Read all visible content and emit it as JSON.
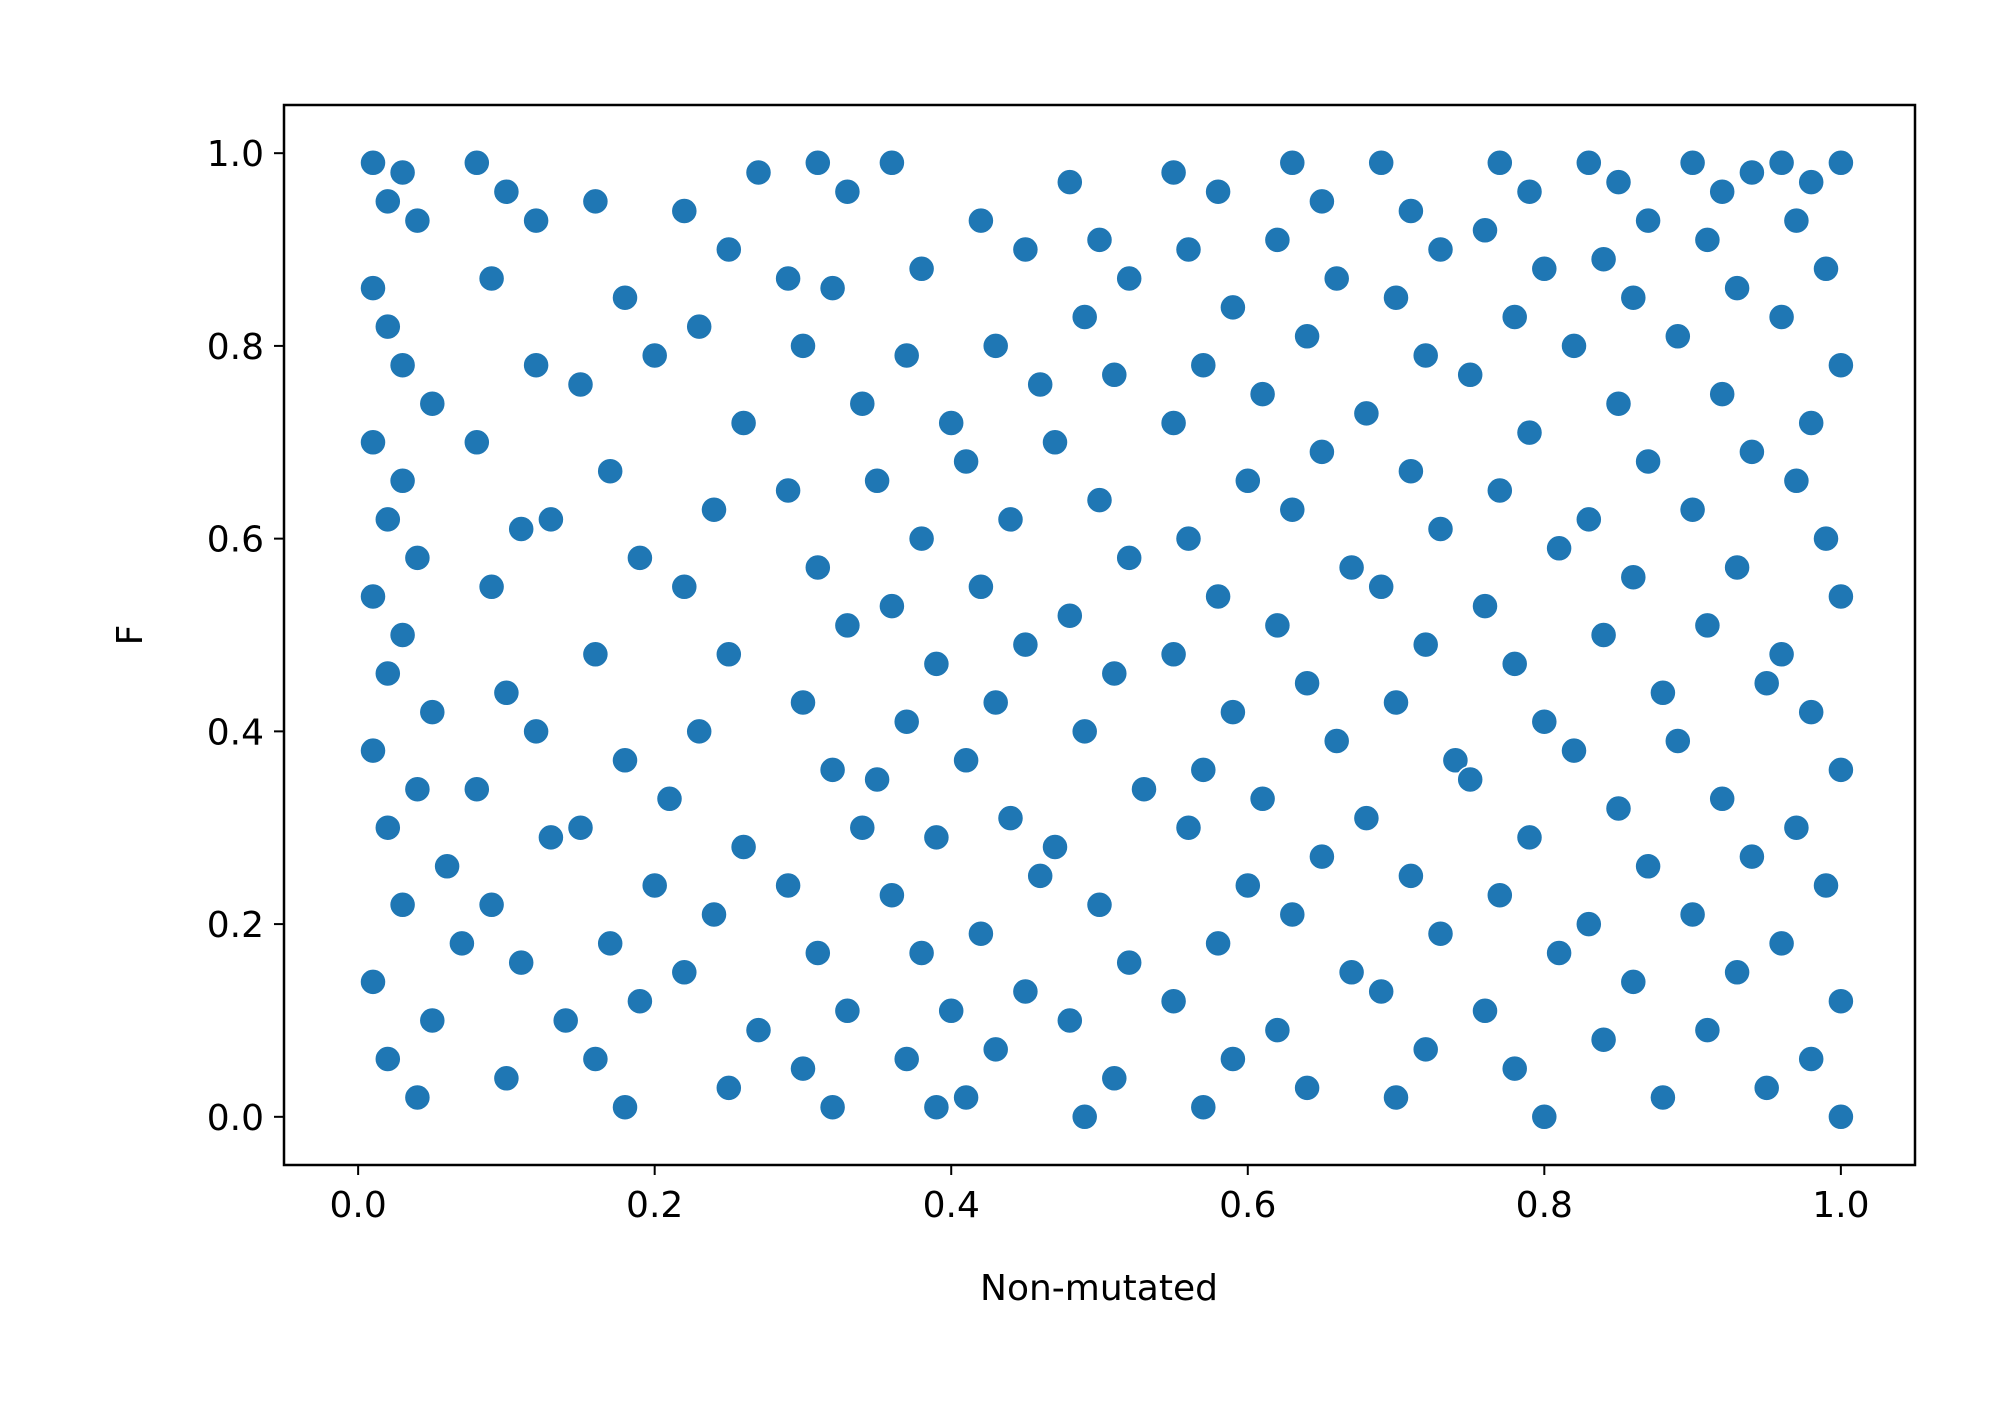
{
  "chart_data": {
    "type": "scatter",
    "title": "",
    "xlabel": "Non-mutated",
    "ylabel": "F",
    "xlim": [
      -0.05,
      1.05
    ],
    "ylim": [
      -0.05,
      1.05
    ],
    "x_ticks": [
      0.0,
      0.2,
      0.4,
      0.6,
      0.8,
      1.0
    ],
    "x_tick_labels": [
      "0.0",
      "0.2",
      "0.4",
      "0.6",
      "0.8",
      "1.0"
    ],
    "y_ticks": [
      0.0,
      0.2,
      0.4,
      0.6,
      0.8,
      1.0
    ],
    "y_tick_labels": [
      "0.0",
      "0.2",
      "0.4",
      "0.6",
      "0.8",
      "1.0"
    ],
    "grid": false,
    "legend": "none",
    "marker_color": "#1f77b4",
    "marker_edge_color": "#ffffff",
    "series": [
      {
        "points": [
          [
            0.01,
            0.99
          ],
          [
            0.02,
            0.95
          ],
          [
            0.03,
            0.98
          ],
          [
            0.04,
            0.93
          ],
          [
            0.01,
            0.86
          ],
          [
            0.02,
            0.82
          ],
          [
            0.03,
            0.78
          ],
          [
            0.05,
            0.74
          ],
          [
            0.01,
            0.7
          ],
          [
            0.03,
            0.66
          ],
          [
            0.02,
            0.62
          ],
          [
            0.04,
            0.58
          ],
          [
            0.01,
            0.54
          ],
          [
            0.03,
            0.5
          ],
          [
            0.02,
            0.46
          ],
          [
            0.05,
            0.42
          ],
          [
            0.01,
            0.38
          ],
          [
            0.04,
            0.34
          ],
          [
            0.02,
            0.3
          ],
          [
            0.06,
            0.26
          ],
          [
            0.03,
            0.22
          ],
          [
            0.07,
            0.18
          ],
          [
            0.01,
            0.14
          ],
          [
            0.05,
            0.1
          ],
          [
            0.02,
            0.06
          ],
          [
            0.04,
            0.02
          ],
          [
            0.08,
            0.99
          ],
          [
            0.1,
            0.96
          ],
          [
            0.12,
            0.93
          ],
          [
            0.09,
            0.87
          ],
          [
            0.12,
            0.78
          ],
          [
            0.08,
            0.7
          ],
          [
            0.11,
            0.61
          ],
          [
            0.09,
            0.55
          ],
          [
            0.13,
            0.62
          ],
          [
            0.1,
            0.44
          ],
          [
            0.12,
            0.4
          ],
          [
            0.08,
            0.34
          ],
          [
            0.13,
            0.29
          ],
          [
            0.09,
            0.22
          ],
          [
            0.11,
            0.16
          ],
          [
            0.14,
            0.1
          ],
          [
            0.1,
            0.04
          ],
          [
            0.16,
            0.95
          ],
          [
            0.18,
            0.85
          ],
          [
            0.15,
            0.76
          ],
          [
            0.2,
            0.79
          ],
          [
            0.17,
            0.67
          ],
          [
            0.19,
            0.58
          ],
          [
            0.16,
            0.48
          ],
          [
            0.18,
            0.37
          ],
          [
            0.15,
            0.3
          ],
          [
            0.2,
            0.24
          ],
          [
            0.17,
            0.18
          ],
          [
            0.19,
            0.12
          ],
          [
            0.16,
            0.06
          ],
          [
            0.18,
            0.01
          ],
          [
            0.22,
            0.94
          ],
          [
            0.25,
            0.9
          ],
          [
            0.27,
            0.98
          ],
          [
            0.23,
            0.82
          ],
          [
            0.26,
            0.72
          ],
          [
            0.24,
            0.63
          ],
          [
            0.22,
            0.55
          ],
          [
            0.25,
            0.48
          ],
          [
            0.23,
            0.4
          ],
          [
            0.21,
            0.33
          ],
          [
            0.26,
            0.28
          ],
          [
            0.24,
            0.21
          ],
          [
            0.22,
            0.15
          ],
          [
            0.27,
            0.09
          ],
          [
            0.25,
            0.03
          ],
          [
            0.31,
            0.99
          ],
          [
            0.33,
            0.96
          ],
          [
            0.29,
            0.87
          ],
          [
            0.32,
            0.86
          ],
          [
            0.3,
            0.8
          ],
          [
            0.34,
            0.74
          ],
          [
            0.29,
            0.65
          ],
          [
            0.31,
            0.57
          ],
          [
            0.33,
            0.51
          ],
          [
            0.3,
            0.43
          ],
          [
            0.32,
            0.36
          ],
          [
            0.34,
            0.3
          ],
          [
            0.29,
            0.24
          ],
          [
            0.31,
            0.17
          ],
          [
            0.33,
            0.11
          ],
          [
            0.3,
            0.05
          ],
          [
            0.32,
            0.01
          ],
          [
            0.36,
            0.99
          ],
          [
            0.38,
            0.88
          ],
          [
            0.37,
            0.79
          ],
          [
            0.4,
            0.72
          ],
          [
            0.35,
            0.66
          ],
          [
            0.38,
            0.6
          ],
          [
            0.36,
            0.53
          ],
          [
            0.39,
            0.47
          ],
          [
            0.37,
            0.41
          ],
          [
            0.35,
            0.35
          ],
          [
            0.39,
            0.29
          ],
          [
            0.36,
            0.23
          ],
          [
            0.38,
            0.17
          ],
          [
            0.4,
            0.11
          ],
          [
            0.37,
            0.06
          ],
          [
            0.39,
            0.01
          ],
          [
            0.42,
            0.93
          ],
          [
            0.45,
            0.9
          ],
          [
            0.43,
            0.8
          ],
          [
            0.46,
            0.76
          ],
          [
            0.41,
            0.68
          ],
          [
            0.44,
            0.62
          ],
          [
            0.42,
            0.55
          ],
          [
            0.45,
            0.49
          ],
          [
            0.43,
            0.43
          ],
          [
            0.41,
            0.37
          ],
          [
            0.44,
            0.31
          ],
          [
            0.46,
            0.25
          ],
          [
            0.42,
            0.19
          ],
          [
            0.45,
            0.13
          ],
          [
            0.43,
            0.07
          ],
          [
            0.41,
            0.02
          ],
          [
            0.48,
            0.97
          ],
          [
            0.5,
            0.91
          ],
          [
            0.52,
            0.87
          ],
          [
            0.49,
            0.83
          ],
          [
            0.51,
            0.77
          ],
          [
            0.47,
            0.7
          ],
          [
            0.5,
            0.64
          ],
          [
            0.52,
            0.58
          ],
          [
            0.48,
            0.52
          ],
          [
            0.51,
            0.46
          ],
          [
            0.49,
            0.4
          ],
          [
            0.53,
            0.34
          ],
          [
            0.47,
            0.28
          ],
          [
            0.5,
            0.22
          ],
          [
            0.52,
            0.16
          ],
          [
            0.48,
            0.1
          ],
          [
            0.51,
            0.04
          ],
          [
            0.49,
            0.0
          ],
          [
            0.55,
            0.98
          ],
          [
            0.58,
            0.96
          ],
          [
            0.56,
            0.9
          ],
          [
            0.59,
            0.84
          ],
          [
            0.57,
            0.78
          ],
          [
            0.55,
            0.72
          ],
          [
            0.6,
            0.66
          ],
          [
            0.56,
            0.6
          ],
          [
            0.58,
            0.54
          ],
          [
            0.55,
            0.48
          ],
          [
            0.59,
            0.42
          ],
          [
            0.57,
            0.36
          ],
          [
            0.56,
            0.3
          ],
          [
            0.6,
            0.24
          ],
          [
            0.58,
            0.18
          ],
          [
            0.55,
            0.12
          ],
          [
            0.59,
            0.06
          ],
          [
            0.57,
            0.01
          ],
          [
            0.63,
            0.99
          ],
          [
            0.65,
            0.95
          ],
          [
            0.62,
            0.91
          ],
          [
            0.66,
            0.87
          ],
          [
            0.64,
            0.81
          ],
          [
            0.61,
            0.75
          ],
          [
            0.65,
            0.69
          ],
          [
            0.63,
            0.63
          ],
          [
            0.67,
            0.57
          ],
          [
            0.62,
            0.51
          ],
          [
            0.64,
            0.45
          ],
          [
            0.66,
            0.39
          ],
          [
            0.61,
            0.33
          ],
          [
            0.65,
            0.27
          ],
          [
            0.63,
            0.21
          ],
          [
            0.67,
            0.15
          ],
          [
            0.62,
            0.09
          ],
          [
            0.64,
            0.03
          ],
          [
            0.69,
            0.99
          ],
          [
            0.71,
            0.94
          ],
          [
            0.73,
            0.9
          ],
          [
            0.7,
            0.85
          ],
          [
            0.72,
            0.79
          ],
          [
            0.68,
            0.73
          ],
          [
            0.71,
            0.67
          ],
          [
            0.73,
            0.61
          ],
          [
            0.69,
            0.55
          ],
          [
            0.72,
            0.49
          ],
          [
            0.7,
            0.43
          ],
          [
            0.74,
            0.37
          ],
          [
            0.68,
            0.31
          ],
          [
            0.71,
            0.25
          ],
          [
            0.73,
            0.19
          ],
          [
            0.69,
            0.13
          ],
          [
            0.72,
            0.07
          ],
          [
            0.7,
            0.02
          ],
          [
            0.77,
            0.99
          ],
          [
            0.79,
            0.96
          ],
          [
            0.76,
            0.92
          ],
          [
            0.8,
            0.88
          ],
          [
            0.78,
            0.83
          ],
          [
            0.75,
            0.77
          ],
          [
            0.79,
            0.71
          ],
          [
            0.77,
            0.65
          ],
          [
            0.81,
            0.59
          ],
          [
            0.76,
            0.53
          ],
          [
            0.78,
            0.47
          ],
          [
            0.8,
            0.41
          ],
          [
            0.75,
            0.35
          ],
          [
            0.79,
            0.29
          ],
          [
            0.77,
            0.23
          ],
          [
            0.81,
            0.17
          ],
          [
            0.76,
            0.11
          ],
          [
            0.78,
            0.05
          ],
          [
            0.8,
            0.0
          ],
          [
            0.83,
            0.99
          ],
          [
            0.85,
            0.97
          ],
          [
            0.87,
            0.93
          ],
          [
            0.84,
            0.89
          ],
          [
            0.86,
            0.85
          ],
          [
            0.82,
            0.8
          ],
          [
            0.85,
            0.74
          ],
          [
            0.87,
            0.68
          ],
          [
            0.83,
            0.62
          ],
          [
            0.86,
            0.56
          ],
          [
            0.84,
            0.5
          ],
          [
            0.88,
            0.44
          ],
          [
            0.82,
            0.38
          ],
          [
            0.85,
            0.32
          ],
          [
            0.87,
            0.26
          ],
          [
            0.83,
            0.2
          ],
          [
            0.86,
            0.14
          ],
          [
            0.84,
            0.08
          ],
          [
            0.88,
            0.02
          ],
          [
            0.9,
            0.99
          ],
          [
            0.92,
            0.96
          ],
          [
            0.94,
            0.98
          ],
          [
            0.91,
            0.91
          ],
          [
            0.93,
            0.86
          ],
          [
            0.89,
            0.81
          ],
          [
            0.92,
            0.75
          ],
          [
            0.94,
            0.69
          ],
          [
            0.9,
            0.63
          ],
          [
            0.93,
            0.57
          ],
          [
            0.91,
            0.51
          ],
          [
            0.95,
            0.45
          ],
          [
            0.89,
            0.39
          ],
          [
            0.92,
            0.33
          ],
          [
            0.94,
            0.27
          ],
          [
            0.9,
            0.21
          ],
          [
            0.93,
            0.15
          ],
          [
            0.91,
            0.09
          ],
          [
            0.95,
            0.03
          ],
          [
            0.96,
            0.99
          ],
          [
            0.98,
            0.97
          ],
          [
            1.0,
            0.99
          ],
          [
            0.97,
            0.93
          ],
          [
            0.99,
            0.88
          ],
          [
            0.96,
            0.83
          ],
          [
            1.0,
            0.78
          ],
          [
            0.98,
            0.72
          ],
          [
            0.97,
            0.66
          ],
          [
            0.99,
            0.6
          ],
          [
            1.0,
            0.54
          ],
          [
            0.96,
            0.48
          ],
          [
            0.98,
            0.42
          ],
          [
            1.0,
            0.36
          ],
          [
            0.97,
            0.3
          ],
          [
            0.99,
            0.24
          ],
          [
            0.96,
            0.18
          ],
          [
            1.0,
            0.12
          ],
          [
            0.98,
            0.06
          ],
          [
            1.0,
            0.0
          ]
        ]
      }
    ]
  }
}
